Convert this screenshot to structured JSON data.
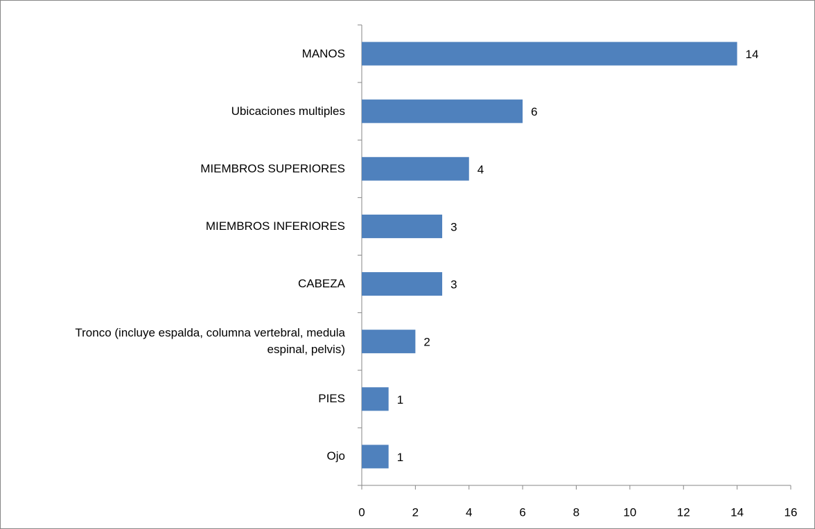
{
  "chart_data": {
    "type": "bar",
    "orientation": "horizontal",
    "categories": [
      "MANOS",
      "Ubicaciones multiples",
      "MIEMBROS SUPERIORES",
      "MIEMBROS INFERIORES",
      "CABEZA",
      "Tronco (incluye espalda, columna vertebral, medula espinal, pelvis)",
      "PIES",
      "Ojo"
    ],
    "values": [
      14,
      6,
      4,
      3,
      3,
      2,
      1,
      1
    ],
    "color": "#4f81bd",
    "xlim": [
      0,
      16
    ],
    "xticks": [
      0,
      2,
      4,
      6,
      8,
      10,
      12,
      14,
      16
    ],
    "grid": false,
    "data_labels": true
  }
}
